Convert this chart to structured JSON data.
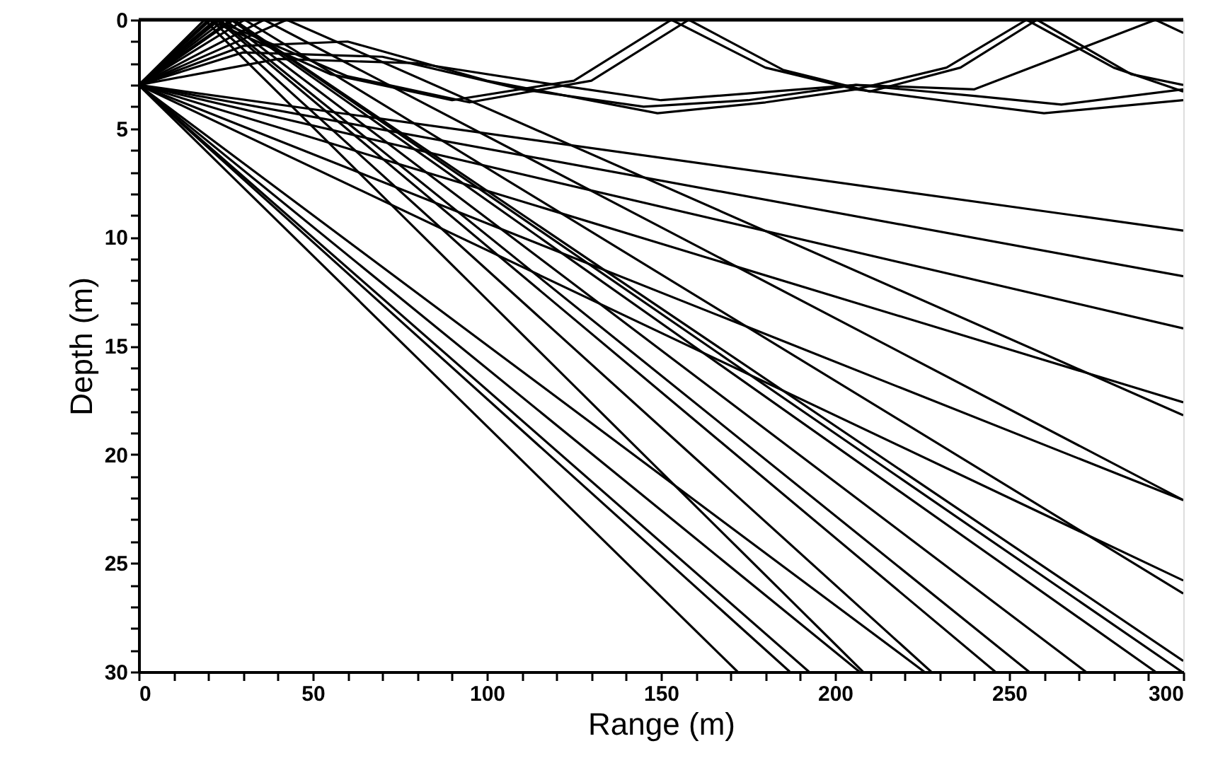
{
  "chart_data": {
    "type": "line",
    "xlabel": "Range (m)",
    "ylabel": "Depth (m)",
    "xlim": [
      0,
      300
    ],
    "ylim": [
      30,
      0
    ],
    "xticks": [
      0,
      {
        "value": 10,
        "label": null
      },
      {
        "value": 20,
        "label": null
      },
      {
        "value": 30,
        "label": null
      },
      {
        "value": 40,
        "label": null
      },
      50,
      {
        "value": 60,
        "label": null
      },
      {
        "value": 70,
        "label": null
      },
      {
        "value": 80,
        "label": null
      },
      {
        "value": 90,
        "label": null
      },
      100,
      {
        "value": 110,
        "label": null
      },
      {
        "value": 120,
        "label": null
      },
      {
        "value": 130,
        "label": null
      },
      {
        "value": 140,
        "label": null
      },
      150,
      {
        "value": 160,
        "label": null
      },
      {
        "value": 170,
        "label": null
      },
      {
        "value": 180,
        "label": null
      },
      {
        "value": 190,
        "label": null
      },
      200,
      {
        "value": 210,
        "label": null
      },
      {
        "value": 220,
        "label": null
      },
      {
        "value": 230,
        "label": null
      },
      {
        "value": 240,
        "label": null
      },
      250,
      {
        "value": 260,
        "label": null
      },
      {
        "value": 270,
        "label": null
      },
      {
        "value": 280,
        "label": null
      },
      {
        "value": 290,
        "label": null
      },
      300
    ],
    "yticks": [
      0,
      {
        "value": 1,
        "label": null
      },
      {
        "value": 2,
        "label": null
      },
      {
        "value": 3,
        "label": null
      },
      {
        "value": 4,
        "label": null
      },
      5,
      {
        "value": 6,
        "label": null
      },
      {
        "value": 7,
        "label": null
      },
      {
        "value": 8,
        "label": null
      },
      {
        "value": 9,
        "label": null
      },
      10,
      {
        "value": 11,
        "label": null
      },
      {
        "value": 12,
        "label": null
      },
      {
        "value": 13,
        "label": null
      },
      {
        "value": 14,
        "label": null
      },
      15,
      {
        "value": 16,
        "label": null
      },
      {
        "value": 17,
        "label": null
      },
      {
        "value": 18,
        "label": null
      },
      {
        "value": 19,
        "label": null
      },
      20,
      {
        "value": 21,
        "label": null
      },
      {
        "value": 22,
        "label": null
      },
      {
        "value": 23,
        "label": null
      },
      {
        "value": 24,
        "label": null
      },
      25,
      {
        "value": 26,
        "label": null
      },
      {
        "value": 27,
        "label": null
      },
      {
        "value": 28,
        "label": null
      },
      {
        "value": 29,
        "label": null
      },
      30
    ],
    "grid": false,
    "marker": "none",
    "line_style": "solid",
    "ref_lines": [
      {
        "axis": "y",
        "value": 0,
        "color": "#000000"
      }
    ],
    "series": [
      {
        "color": "#000000",
        "x": [
          0,
          172
        ],
        "values": [
          3,
          30
        ]
      },
      {
        "color": "#000000",
        "x": [
          0,
          187
        ],
        "values": [
          3,
          30
        ]
      },
      {
        "color": "#000000",
        "x": [
          0,
          192.5
        ],
        "values": [
          3,
          30
        ]
      },
      {
        "color": "#000000",
        "x": [
          0,
          207
        ],
        "values": [
          3,
          30
        ]
      },
      {
        "color": "#000000",
        "x": [
          0,
          225.6
        ],
        "values": [
          3,
          30
        ]
      },
      {
        "color": "#000000",
        "x": [
          0,
          300
        ],
        "values": [
          3,
          25.8
        ]
      },
      {
        "color": "#000000",
        "x": [
          0,
          300
        ],
        "values": [
          3,
          22.1
        ]
      },
      {
        "color": "#000000",
        "x": [
          0,
          300
        ],
        "values": [
          3,
          17.6
        ]
      },
      {
        "color": "#000000",
        "x": [
          0,
          300
        ],
        "values": [
          3,
          14.2
        ]
      },
      {
        "color": "#000000",
        "x": [
          0,
          300
        ],
        "values": [
          3,
          11.8
        ]
      },
      {
        "color": "#000000",
        "x": [
          0,
          300
        ],
        "values": [
          3,
          9.7
        ]
      },
      {
        "color": "#000000",
        "x": [
          0,
          18.9,
          208
        ],
        "values": [
          3,
          0,
          30
        ]
      },
      {
        "color": "#000000",
        "x": [
          0,
          20.7,
          227.6
        ],
        "values": [
          3,
          0,
          30
        ]
      },
      {
        "color": "#000000",
        "x": [
          0,
          22.4,
          246
        ],
        "values": [
          3,
          0,
          30
        ]
      },
      {
        "color": "#000000",
        "x": [
          0,
          23.2,
          255.7
        ],
        "values": [
          3,
          0,
          30
        ]
      },
      {
        "color": "#000000",
        "x": [
          0,
          24.7,
          272
        ],
        "values": [
          3,
          0,
          30
        ]
      },
      {
        "color": "#000000",
        "x": [
          0,
          26.5,
          292
        ],
        "values": [
          3,
          0,
          30
        ]
      },
      {
        "color": "#000000",
        "x": [
          0,
          27.2,
          299.6
        ],
        "values": [
          3,
          0,
          30
        ]
      },
      {
        "color": "#000000",
        "x": [
          0,
          27.3,
          300
        ],
        "values": [
          3,
          0,
          29.5
        ]
      },
      {
        "color": "#000000",
        "x": [
          0,
          30.4,
          300
        ],
        "values": [
          3,
          0,
          26.4
        ]
      },
      {
        "color": "#000000",
        "x": [
          0,
          36.0,
          300
        ],
        "values": [
          3,
          0,
          22.1
        ]
      },
      {
        "color": "#000000",
        "x": [
          0,
          42.5,
          300
        ],
        "values": [
          3,
          0,
          18.2
        ]
      },
      {
        "color": "#000000",
        "x": [
          0,
          20,
          55,
          90,
          125,
          153,
          180,
          206,
          232,
          255,
          280,
          300
        ],
        "values": [
          3,
          0,
          2.5,
          3.7,
          2.8,
          0,
          2.2,
          3.2,
          2.2,
          0,
          2.2,
          3.3
        ]
      },
      {
        "color": "#000000",
        "x": [
          0,
          22,
          60,
          95,
          130,
          158,
          185,
          210,
          236,
          258,
          285,
          300
        ],
        "values": [
          3,
          0,
          2.6,
          3.8,
          2.8,
          0,
          2.3,
          3.3,
          2.2,
          0,
          2.5,
          3.0
        ]
      },
      {
        "color": "#000000",
        "x": [
          0,
          30,
          60,
          100,
          149,
          180,
          206,
          235,
          260,
          300
        ],
        "values": [
          3,
          1.2,
          1.0,
          2.8,
          4.3,
          3.8,
          3.2,
          3.8,
          4.3,
          3.7
        ]
      },
      {
        "color": "#000000",
        "x": [
          0,
          30,
          70,
          110,
          145,
          175,
          206,
          240,
          265,
          300
        ],
        "values": [
          3,
          1.5,
          1.7,
          3.2,
          4.0,
          3.7,
          3.0,
          3.5,
          3.9,
          3.2
        ]
      },
      {
        "color": "#000000",
        "x": [
          0,
          40,
          80,
          120,
          150,
          206,
          240,
          292,
          300
        ],
        "values": [
          3,
          1.8,
          2.0,
          3.0,
          3.7,
          3.0,
          3.2,
          0,
          0.6
        ]
      }
    ]
  }
}
